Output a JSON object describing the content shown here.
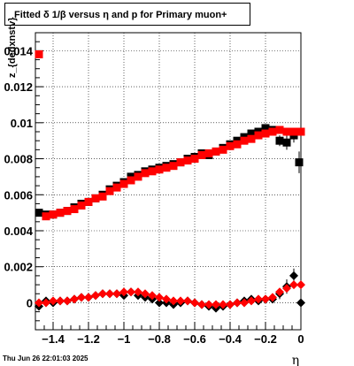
{
  "title": "Fitted δ 1/β versus η and p for Primary muon+",
  "datestamp": "Thu Jun 26 22:01:03 2025",
  "chart_data": {
    "type": "scatter",
    "title": "Fitted δ 1/β versus η and p for Primary muon+",
    "xlabel": "η",
    "ylabel": "z_{dedxnstv}",
    "xlim": [
      -1.5,
      0.0
    ],
    "ylim": [
      -0.0015,
      0.015
    ],
    "grid": true,
    "x_ticks": [
      "−1.4",
      "−1.2",
      "−1",
      "−0.8",
      "−0.6",
      "−0.4",
      "−0.2",
      "0"
    ],
    "x_tick_values": [
      -1.4,
      -1.2,
      -1.0,
      -0.8,
      -0.6,
      -0.4,
      -0.2,
      0.0
    ],
    "y_ticks": [
      "0",
      "0.002",
      "0.004",
      "0.006",
      "0.008",
      "0.01",
      "0.012",
      "0.014"
    ],
    "y_tick_values": [
      0.0,
      0.002,
      0.004,
      0.006,
      0.008,
      0.01,
      0.012,
      0.014
    ],
    "series": [
      {
        "color": "#000000",
        "marker": "square",
        "x": [
          -1.48,
          -1.44,
          -1.4,
          -1.36,
          -1.32,
          -1.28,
          -1.24,
          -1.2,
          -1.16,
          -1.12,
          -1.08,
          -1.04,
          -1.0,
          -0.96,
          -0.92,
          -0.88,
          -0.84,
          -0.8,
          -0.76,
          -0.72,
          -0.68,
          -0.64,
          -0.6,
          -0.56,
          -0.52,
          -0.48,
          -0.44,
          -0.4,
          -0.36,
          -0.32,
          -0.28,
          -0.24,
          -0.2,
          -0.16,
          -0.12,
          -0.08,
          -0.04,
          -0.01
        ],
        "y": [
          0.005,
          0.0049,
          0.0049,
          0.005,
          0.0051,
          0.0053,
          0.0055,
          0.0056,
          0.0058,
          0.006,
          0.0063,
          0.0065,
          0.0067,
          0.007,
          0.0071,
          0.0073,
          0.0074,
          0.0075,
          0.0076,
          0.0077,
          0.0078,
          0.008,
          0.0081,
          0.0083,
          0.0082,
          0.0084,
          0.0086,
          0.0088,
          0.009,
          0.0092,
          0.0094,
          0.0095,
          0.0097,
          0.0096,
          0.009,
          0.0089,
          0.0093,
          0.0078
        ],
        "yerr": [
          0.0002,
          0.0001,
          0.0001,
          0.0001,
          0.0001,
          0.0001,
          0.0001,
          0.0001,
          0.0001,
          0.0001,
          0.0001,
          0.0001,
          0.0001,
          0.0001,
          0.0001,
          0.0001,
          0.0001,
          0.0001,
          0.0001,
          0.0001,
          0.0001,
          0.0001,
          0.0001,
          0.0002,
          0.0001,
          0.0002,
          0.0002,
          0.0002,
          0.0001,
          0.0001,
          0.0001,
          0.0001,
          0.0002,
          0.0001,
          0.0003,
          0.0004,
          0.0004,
          0.0006
        ]
      },
      {
        "color": "#ff0000",
        "marker": "square",
        "x": [
          -1.48,
          -1.44,
          -1.4,
          -1.36,
          -1.32,
          -1.28,
          -1.24,
          -1.2,
          -1.16,
          -1.12,
          -1.08,
          -1.04,
          -1.0,
          -0.96,
          -0.92,
          -0.88,
          -0.84,
          -0.8,
          -0.76,
          -0.72,
          -0.68,
          -0.64,
          -0.6,
          -0.56,
          -0.52,
          -0.48,
          -0.44,
          -0.4,
          -0.36,
          -0.32,
          -0.28,
          -0.24,
          -0.2,
          -0.16,
          -0.12,
          -0.08,
          -0.04,
          0.0
        ],
        "y": [
          0.0138,
          0.0048,
          0.0049,
          0.005,
          0.0051,
          0.0052,
          0.0054,
          0.0056,
          0.0058,
          0.0059,
          0.0062,
          0.0064,
          0.0066,
          0.0068,
          0.007,
          0.0072,
          0.0073,
          0.0074,
          0.0075,
          0.0076,
          0.0078,
          0.0079,
          0.008,
          0.0082,
          0.0083,
          0.0084,
          0.0085,
          0.0087,
          0.0088,
          0.009,
          0.0091,
          0.0093,
          0.0094,
          0.0095,
          0.0096,
          0.0095,
          0.0095,
          0.0095
        ],
        "yerr": []
      },
      {
        "color": "#000000",
        "marker": "diamond",
        "x": [
          -1.48,
          -1.44,
          -1.4,
          -1.36,
          -1.32,
          -1.28,
          -1.24,
          -1.2,
          -1.16,
          -1.12,
          -1.08,
          -1.04,
          -1.0,
          -0.96,
          -0.92,
          -0.88,
          -0.84,
          -0.8,
          -0.76,
          -0.72,
          -0.68,
          -0.64,
          -0.6,
          -0.56,
          -0.52,
          -0.48,
          -0.44,
          -0.4,
          -0.36,
          -0.32,
          -0.28,
          -0.24,
          -0.2,
          -0.16,
          -0.12,
          -0.08,
          -0.04,
          0.0
        ],
        "y": [
          -0.0002,
          0.0001,
          0.0,
          0.0001,
          0.0001,
          0.0002,
          0.0003,
          0.0003,
          0.0004,
          0.0005,
          0.0005,
          0.0005,
          0.0004,
          0.0006,
          0.0004,
          0.0003,
          0.0002,
          0.0,
          0.0,
          -0.0001,
          0.0,
          0.0001,
          0.0,
          -0.0001,
          -0.0002,
          -0.0003,
          -0.0002,
          -0.0001,
          0.0,
          0.0001,
          0.0002,
          0.0001,
          0.0002,
          0.0002,
          0.0005,
          0.0009,
          0.0015,
          0.0
        ],
        "yerr": [
          0.0001,
          0.0001,
          0.0001,
          0.0001,
          0.0001,
          0.0001,
          0.0001,
          0.0001,
          0.0001,
          0.0001,
          0.0001,
          0.0001,
          0.0001,
          0.0001,
          0.0001,
          0.0001,
          0.0001,
          0.0001,
          0.0001,
          0.0001,
          0.0001,
          0.0001,
          0.0002,
          0.0002,
          0.0002,
          0.0002,
          0.0002,
          0.0001,
          0.0001,
          0.0001,
          0.0001,
          0.0001,
          0.0002,
          0.0002,
          0.0003,
          0.0004,
          0.0004,
          0.0005
        ]
      },
      {
        "color": "#ff0000",
        "marker": "diamond",
        "x": [
          -1.48,
          -1.44,
          -1.4,
          -1.36,
          -1.32,
          -1.28,
          -1.24,
          -1.2,
          -1.16,
          -1.12,
          -1.08,
          -1.04,
          -1.0,
          -0.96,
          -0.92,
          -0.88,
          -0.84,
          -0.8,
          -0.76,
          -0.72,
          -0.68,
          -0.64,
          -0.6,
          -0.56,
          -0.52,
          -0.48,
          -0.44,
          -0.4,
          -0.36,
          -0.32,
          -0.28,
          -0.24,
          -0.2,
          -0.16,
          -0.12,
          -0.08,
          -0.04,
          0.0
        ],
        "y": [
          0.0,
          0.0,
          0.0001,
          0.0001,
          0.0001,
          0.0002,
          0.0003,
          0.0003,
          0.0004,
          0.0005,
          0.0005,
          0.0005,
          0.0006,
          0.0006,
          0.0006,
          0.0005,
          0.0004,
          0.0003,
          0.0002,
          0.0001,
          0.0001,
          0.0001,
          0.0,
          -0.0001,
          -0.0001,
          -0.0001,
          -0.0001,
          -0.0001,
          0.0,
          0.0,
          0.0001,
          0.0002,
          0.0002,
          0.0003,
          0.0006,
          0.0008,
          0.001,
          0.001
        ],
        "yerr": []
      }
    ]
  }
}
